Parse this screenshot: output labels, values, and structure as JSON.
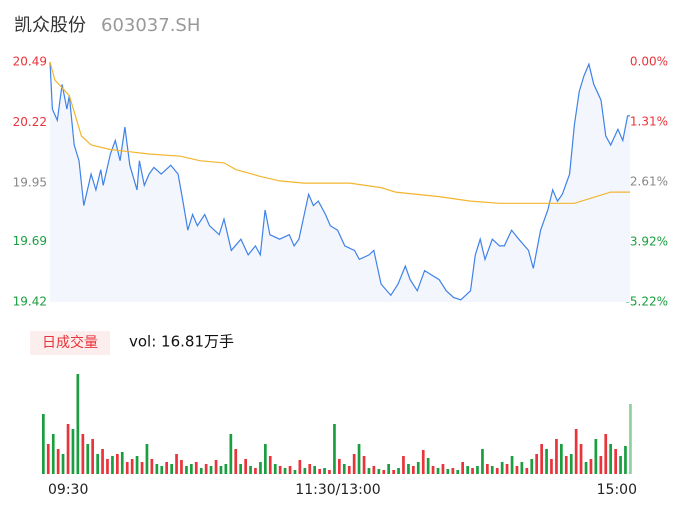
{
  "header": {
    "name": "凯众股份",
    "code": "603037.SH"
  },
  "chart_data": [
    {
      "type": "line",
      "ylim": [
        19.42,
        20.49
      ],
      "yticks": [
        20.49,
        20.22,
        19.95,
        19.69,
        19.42
      ],
      "ytick_colors": [
        "#e8343a",
        "#e8343a",
        "#888888",
        "#1a9e3f",
        "#1a9e3f"
      ],
      "y2lim": [
        0,
        -5.22
      ],
      "y2ticks": [
        {
          "value": 0,
          "label": "0.00%"
        },
        {
          "value": -1.31,
          "label": "-1.31%"
        },
        {
          "value": -2.61,
          "label": "-2.61%"
        },
        {
          "value": -3.92,
          "label": "-3.92%"
        },
        {
          "value": -5.22,
          "label": "-5.22%"
        }
      ],
      "xlim": [
        0,
        240
      ],
      "area_color": "#f3f6fc",
      "series": [
        {
          "color": "#3f82e8",
          "x": [
            0,
            1,
            3,
            5,
            7,
            8,
            10,
            12,
            14,
            17,
            19,
            21,
            22,
            25,
            27,
            29,
            31,
            33,
            36,
            37,
            39,
            41,
            43,
            46,
            50,
            53,
            55,
            57,
            59,
            61,
            64,
            66,
            70,
            72,
            75,
            79,
            82,
            85,
            87,
            89,
            91,
            95,
            99,
            101,
            103,
            107,
            109,
            111,
            114,
            116,
            119,
            122,
            126,
            128,
            132,
            134,
            137,
            141,
            144,
            147,
            149,
            152,
            155,
            158,
            161,
            164,
            167,
            170,
            174,
            176,
            178,
            180,
            183,
            186,
            188,
            191,
            194,
            198,
            200,
            203,
            206,
            208,
            210,
            212,
            215,
            217,
            219,
            221,
            223,
            225,
            228,
            230,
            232,
            235,
            237,
            239,
            240
          ],
          "values": [
            20.49,
            20.28,
            20.23,
            20.39,
            20.28,
            20.34,
            20.12,
            20.05,
            19.85,
            19.99,
            19.92,
            20.01,
            19.94,
            20.08,
            20.14,
            20.05,
            20.2,
            20.03,
            19.92,
            20.05,
            19.94,
            19.99,
            20.02,
            19.99,
            20.03,
            19.99,
            19.87,
            19.74,
            19.81,
            19.76,
            19.81,
            19.76,
            19.72,
            19.79,
            19.65,
            19.7,
            19.63,
            19.67,
            19.63,
            19.83,
            19.72,
            19.7,
            19.72,
            19.67,
            19.7,
            19.9,
            19.85,
            19.87,
            19.81,
            19.76,
            19.74,
            19.67,
            19.65,
            19.61,
            19.63,
            19.65,
            19.5,
            19.45,
            19.5,
            19.58,
            19.52,
            19.47,
            19.56,
            19.54,
            19.52,
            19.47,
            19.44,
            19.43,
            19.47,
            19.63,
            19.7,
            19.61,
            19.7,
            19.67,
            19.67,
            19.74,
            19.7,
            19.65,
            19.57,
            19.74,
            19.83,
            19.92,
            19.87,
            19.9,
            19.99,
            20.21,
            20.36,
            20.43,
            20.48,
            20.39,
            20.32,
            20.16,
            20.12,
            20.19,
            20.14,
            20.25,
            20.25
          ]
        },
        {
          "color": "#f3b530",
          "x": [
            0,
            2,
            8,
            13,
            17,
            25,
            41,
            54,
            62,
            72,
            77,
            87,
            95,
            105,
            124,
            137,
            143,
            161,
            174,
            186,
            209,
            217,
            223,
            232,
            240
          ],
          "values": [
            20.49,
            20.41,
            20.34,
            20.16,
            20.12,
            20.1,
            20.08,
            20.07,
            20.05,
            20.04,
            20.01,
            19.98,
            19.96,
            19.95,
            19.95,
            19.93,
            19.91,
            19.89,
            19.87,
            19.86,
            19.86,
            19.86,
            19.88,
            19.91,
            19.91
          ]
        }
      ]
    },
    {
      "type": "bar",
      "label": "日成交量",
      "vol_label": "vol: 16.81万手",
      "ylim": [
        0,
        104
      ],
      "xlim": [
        0,
        240
      ],
      "xticks": [
        {
          "value": 0,
          "label": "09:30"
        },
        {
          "value": 120,
          "label": "11:30/13:00"
        },
        {
          "value": 240,
          "label": "15:00"
        }
      ],
      "values": [
        60,
        30,
        40,
        25,
        20,
        50,
        45,
        100,
        40,
        30,
        35,
        20,
        25,
        15,
        18,
        20,
        22,
        12,
        15,
        18,
        12,
        30,
        15,
        10,
        8,
        12,
        10,
        20,
        14,
        8,
        10,
        12,
        6,
        10,
        8,
        14,
        8,
        10,
        40,
        25,
        10,
        15,
        8,
        6,
        12,
        30,
        18,
        10,
        8,
        6,
        8,
        4,
        14,
        6,
        10,
        8,
        5,
        6,
        4,
        50,
        15,
        10,
        8,
        20,
        30,
        18,
        6,
        8,
        5,
        4,
        10,
        4,
        6,
        18,
        10,
        8,
        12,
        24,
        16,
        8,
        6,
        10,
        5,
        6,
        4,
        12,
        8,
        6,
        8,
        25,
        10,
        8,
        6,
        12,
        10,
        18,
        8,
        12,
        6,
        15,
        20,
        30,
        25,
        15,
        35,
        30,
        18,
        20,
        45,
        30,
        12,
        15,
        35,
        18,
        40,
        30,
        25,
        18,
        28,
        70
      ],
      "bar_colors": [
        "#1a9e3f",
        "#e8343a",
        "#1a9e3f",
        "#e8343a",
        "#1a9e3f",
        "#e8343a",
        "#1a9e3f",
        "#1a9e3f",
        "#e8343a",
        "#1a9e3f",
        "#e8343a",
        "#1a9e3f",
        "#e8343a",
        "#e8343a",
        "#1a9e3f",
        "#e8343a",
        "#1a9e3f",
        "#e8343a",
        "#e8343a",
        "#1a9e3f",
        "#e8343a",
        "#1a9e3f",
        "#e8343a",
        "#1a9e3f",
        "#1a9e3f",
        "#e8343a",
        "#1a9e3f",
        "#e8343a",
        "#e8343a",
        "#1a9e3f",
        "#1a9e3f",
        "#e8343a",
        "#1a9e3f",
        "#e8343a",
        "#1a9e3f",
        "#e8343a",
        "#1a9e3f",
        "#1a9e3f",
        "#1a9e3f",
        "#e8343a",
        "#1a9e3f",
        "#e8343a",
        "#1a9e3f",
        "#e8343a",
        "#1a9e3f",
        "#1a9e3f",
        "#e8343a",
        "#1a9e3f",
        "#e8343a",
        "#1a9e3f",
        "#e8343a",
        "#1a9e3f",
        "#e8343a",
        "#1a9e3f",
        "#e8343a",
        "#1a9e3f",
        "#e8343a",
        "#1a9e3f",
        "#e8343a",
        "#1a9e3f",
        "#e8343a",
        "#1a9e3f",
        "#e8343a",
        "#e8343a",
        "#1a9e3f",
        "#e8343a",
        "#1a9e3f",
        "#e8343a",
        "#1a9e3f",
        "#e8343a",
        "#1a9e3f",
        "#e8343a",
        "#1a9e3f",
        "#e8343a",
        "#1a9e3f",
        "#e8343a",
        "#1a9e3f",
        "#e8343a",
        "#1a9e3f",
        "#e8343a",
        "#1a9e3f",
        "#e8343a",
        "#1a9e3f",
        "#e8343a",
        "#1a9e3f",
        "#e8343a",
        "#1a9e3f",
        "#e8343a",
        "#1a9e3f",
        "#1a9e3f",
        "#e8343a",
        "#1a9e3f",
        "#e8343a",
        "#1a9e3f",
        "#e8343a",
        "#1a9e3f",
        "#e8343a",
        "#1a9e3f",
        "#e8343a",
        "#1a9e3f",
        "#e8343a",
        "#e8343a",
        "#1a9e3f",
        "#e8343a",
        "#e8343a",
        "#1a9e3f",
        "#e8343a",
        "#1a9e3f",
        "#e8343a",
        "#e8343a",
        "#1a9e3f",
        "#e8343a",
        "#1a9e3f",
        "#e8343a",
        "#e8343a",
        "#1a9e3f",
        "#e8343a",
        "#1a9e3f",
        "#1a9e3f",
        "#8fd19e"
      ]
    }
  ]
}
